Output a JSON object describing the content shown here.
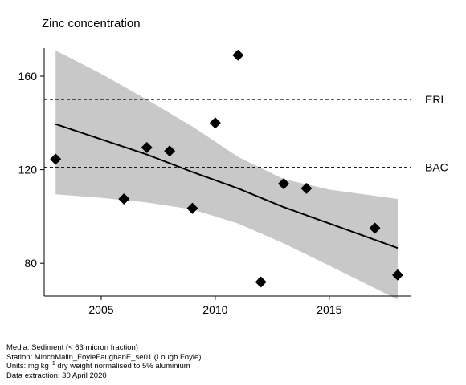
{
  "chart_data": {
    "type": "scatter",
    "title": "Zinc concentration",
    "xlabel": "",
    "ylabel": "",
    "xlim": [
      2002.5,
      2018.6
    ],
    "ylim": [
      66,
      172
    ],
    "x_ticks": [
      2005,
      2010,
      2015
    ],
    "y_ticks": [
      80,
      120,
      160
    ],
    "grid": false,
    "points": [
      {
        "x": 2003,
        "y": 124.5
      },
      {
        "x": 2006,
        "y": 107.5
      },
      {
        "x": 2007,
        "y": 129.5
      },
      {
        "x": 2008,
        "y": 128.0
      },
      {
        "x": 2009,
        "y": 103.5
      },
      {
        "x": 2010,
        "y": 140.0
      },
      {
        "x": 2011,
        "y": 169.0
      },
      {
        "x": 2012,
        "y": 72.0
      },
      {
        "x": 2013,
        "y": 114.0
      },
      {
        "x": 2014,
        "y": 112.0
      },
      {
        "x": 2017,
        "y": 95.0
      },
      {
        "x": 2018,
        "y": 75.0
      }
    ],
    "trend_line": [
      {
        "x": 2003,
        "y": 139.5
      },
      {
        "x": 2005,
        "y": 133.0
      },
      {
        "x": 2007,
        "y": 126.5
      },
      {
        "x": 2009,
        "y": 119.0
      },
      {
        "x": 2011,
        "y": 112.0
      },
      {
        "x": 2013,
        "y": 104.0
      },
      {
        "x": 2015,
        "y": 97.0
      },
      {
        "x": 2018,
        "y": 86.5
      }
    ],
    "confidence_band": {
      "upper": [
        {
          "x": 2003,
          "y": 171.0
        },
        {
          "x": 2005,
          "y": 161.0
        },
        {
          "x": 2007,
          "y": 150.0
        },
        {
          "x": 2009,
          "y": 138.5
        },
        {
          "x": 2011,
          "y": 125.5
        },
        {
          "x": 2013,
          "y": 116.0
        },
        {
          "x": 2015,
          "y": 111.5
        },
        {
          "x": 2018,
          "y": 107.5
        }
      ],
      "lower": [
        {
          "x": 2003,
          "y": 109.5
        },
        {
          "x": 2005,
          "y": 108.0
        },
        {
          "x": 2007,
          "y": 106.0
        },
        {
          "x": 2009,
          "y": 103.0
        },
        {
          "x": 2011,
          "y": 97.0
        },
        {
          "x": 2013,
          "y": 88.5
        },
        {
          "x": 2015,
          "y": 79.0
        },
        {
          "x": 2018,
          "y": 64.5
        }
      ]
    },
    "reference_lines": [
      {
        "label": "ERL",
        "y": 150
      },
      {
        "label": "BAC",
        "y": 121
      }
    ],
    "colors": {
      "point": "#000000",
      "trend": "#000000",
      "band": "#c8c8c8",
      "reference": "#000000"
    }
  },
  "footer": {
    "media": "Media: Sediment (< 63 micron fraction)",
    "station": "Station: MinchMalin_FoyleFaughanE_se01 (Lough Foyle)",
    "units_prefix": "Units:  mg kg",
    "units_sup": "−1",
    "units_suffix": " dry weight normalised to 5% aluminium",
    "extraction": "Data extraction: 30 April 2020"
  }
}
